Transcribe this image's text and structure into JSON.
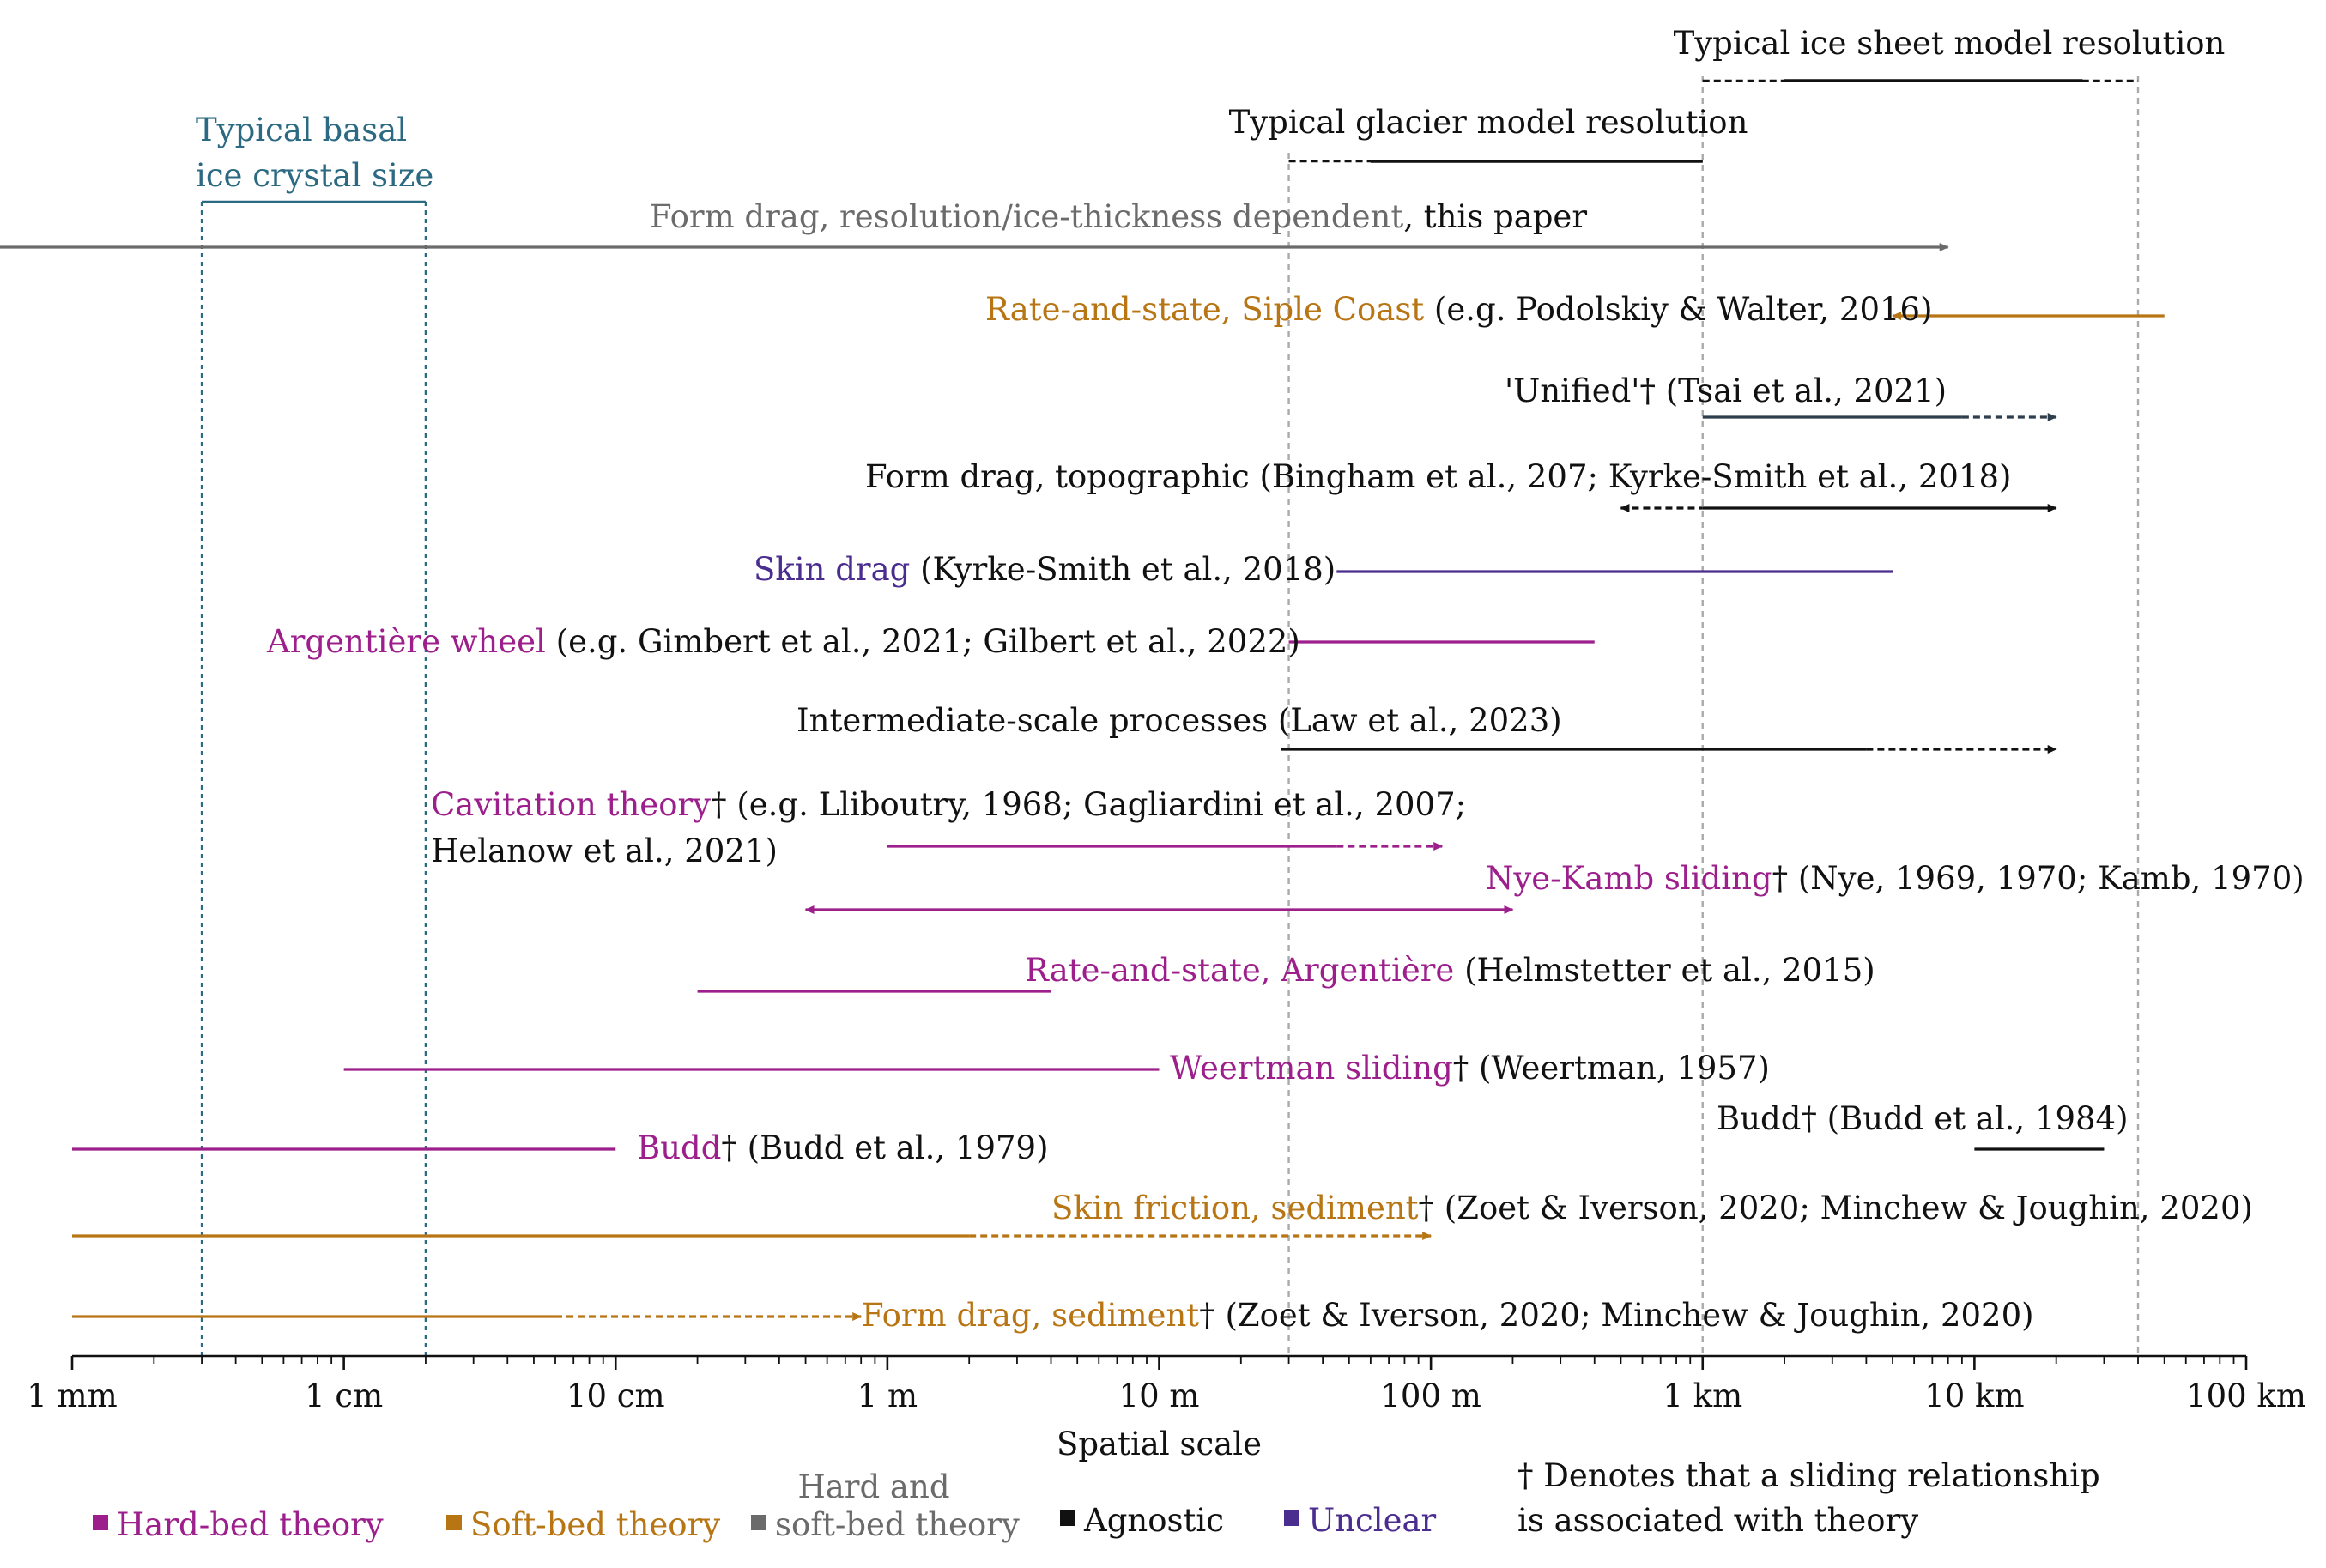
{
  "chart_data": {
    "type": "range",
    "xlabel": "Spatial scale",
    "x_scale": "log",
    "x_unit": "m",
    "xlim": [
      0.001,
      100000
    ],
    "ticks": [
      {
        "value": 0.001,
        "label": "1 mm"
      },
      {
        "value": 0.01,
        "label": "1 cm"
      },
      {
        "value": 0.1,
        "label": "10 cm"
      },
      {
        "value": 1,
        "label": "1 m"
      },
      {
        "value": 10,
        "label": "10 m"
      },
      {
        "value": 100,
        "label": "100 m"
      },
      {
        "value": 1000,
        "label": "1 km"
      },
      {
        "value": 10000,
        "label": "10 km"
      },
      {
        "value": 100000,
        "label": "100 km"
      }
    ],
    "colors": {
      "hard": "#9c1f8c",
      "soft": "#b87514",
      "both": "#6b6b6b",
      "agnostic": "#111111",
      "unclear": "#4b2d8f",
      "teal": "#2b6a82",
      "slate": "#2f3e4c",
      "grid": "#aaaaaa"
    },
    "resolution_bands": [
      {
        "label": "Typical ice sheet model resolution",
        "solid": [
          2000,
          25000
        ],
        "dashed": [
          1000,
          40000
        ]
      },
      {
        "label": "Typical glacier model resolution",
        "solid": [
          60,
          1000
        ],
        "dashed": [
          30,
          1000
        ]
      }
    ],
    "crystal_band": {
      "label_lines": [
        "Typical basal",
        "ice crystal size"
      ],
      "range": [
        0.003,
        0.02
      ]
    },
    "processes": [
      {
        "id": "form-drag-this-paper",
        "label": "Form drag, resolution/ice-thickness dependent",
        "ref": ", this paper",
        "category": "both",
        "solid": [
          0.0004,
          8000
        ],
        "dashed": null,
        "arrows": "both"
      },
      {
        "id": "rate-state-siple",
        "label": "Rate-and-state, Siple Coast",
        "ref": " (e.g. Podolskiy & Walter, 2016)",
        "category": "soft",
        "solid": [
          5000,
          50000
        ],
        "dashed": null,
        "arrows": "start"
      },
      {
        "id": "unified",
        "label": "",
        "ref": "'Unified'† (Tsai et al., 2021)",
        "category": "slate",
        "solid": [
          1000,
          9000
        ],
        "dashed": [
          9000,
          20000
        ],
        "arrows": "end"
      },
      {
        "id": "form-drag-topo",
        "label": "",
        "ref": "Form drag, topographic (Bingham et al., 207; Kyrke-Smith et al., 2018)",
        "category": "agnostic",
        "solid": [
          1000,
          20000
        ],
        "dashed": [
          500,
          1000
        ],
        "arrows": "both"
      },
      {
        "id": "skin-drag",
        "label": "Skin drag",
        "ref": " (Kyrke-Smith et al., 2018)",
        "category": "unclear",
        "solid": [
          45,
          5000
        ],
        "dashed": null,
        "arrows": "none"
      },
      {
        "id": "argentiere-wheel",
        "label": "Argentière wheel",
        "ref": " (e.g. Gimbert et al., 2021; Gilbert et al., 2022)",
        "category": "hard",
        "solid": [
          30,
          400
        ],
        "dashed": null,
        "arrows": "none"
      },
      {
        "id": "intermediate-scale",
        "label": "",
        "ref": "Intermediate-scale processes (Law et al., 2023)",
        "category": "agnostic",
        "solid": [
          28,
          4000
        ],
        "dashed": [
          4000,
          20000
        ],
        "arrows": "end"
      },
      {
        "id": "cavitation",
        "label": "Cavitation theory",
        "ref_lines": [
          "† (e.g. Lliboutry, 1968; Gagliardini et al., 2007;",
          "Helanow et al., 2021)"
        ],
        "category": "hard",
        "solid": [
          1,
          45
        ],
        "dashed": [
          45,
          110
        ],
        "arrows": "end"
      },
      {
        "id": "nye-kamb",
        "label": "Nye-Kamb sliding",
        "ref": "† (Nye, 1969, 1970; Kamb, 1970)",
        "category": "hard",
        "solid": [
          0.5,
          200
        ],
        "dashed": null,
        "arrows": "both"
      },
      {
        "id": "rate-state-argentiere",
        "label": "Rate-and-state, Argentière",
        "ref": " (Helmstetter et al., 2015)",
        "category": "hard",
        "solid": [
          0.2,
          4
        ],
        "dashed": null,
        "arrows": "none"
      },
      {
        "id": "weertman",
        "label": "Weertman sliding",
        "ref": "† (Weertman, 1957)",
        "category": "hard",
        "solid": [
          0.01,
          10
        ],
        "dashed": null,
        "arrows": "none"
      },
      {
        "id": "budd-1984",
        "label": "",
        "ref": "Budd† (Budd et al., 1984)",
        "category": "agnostic",
        "solid": [
          10000,
          30000
        ],
        "dashed": null,
        "arrows": "none"
      },
      {
        "id": "budd-1979",
        "label": "Budd",
        "ref": "† (Budd et al., 1979)",
        "category": "hard",
        "solid": [
          0.001,
          0.1
        ],
        "dashed": null,
        "arrows": "none"
      },
      {
        "id": "skin-friction-sediment",
        "label": "Skin friction, sediment",
        "ref": "† (Zoet & Iverson, 2020; Minchew & Joughin, 2020)",
        "category": "soft",
        "solid": [
          0.001,
          2
        ],
        "dashed": [
          2,
          100
        ],
        "arrows": "end"
      },
      {
        "id": "form-drag-sediment",
        "label": "Form drag, sediment",
        "ref": "† (Zoet & Iverson, 2020; Minchew & Joughin, 2020)",
        "category": "soft",
        "solid": [
          0.001,
          0.06
        ],
        "dashed": [
          0.06,
          0.8
        ],
        "arrows": "end"
      }
    ]
  },
  "legend": {
    "items": [
      {
        "label": "Hard-bed theory",
        "category": "hard"
      },
      {
        "label": "Soft-bed theory",
        "category": "soft"
      },
      {
        "label_lines": [
          "Hard and",
          "soft-bed theory"
        ],
        "category": "both"
      },
      {
        "label": "Agnostic",
        "category": "agnostic"
      },
      {
        "label": "Unclear",
        "category": "unclear"
      }
    ],
    "footnote_lines": [
      "† Denotes that a sliding relationship",
      "is associated with theory"
    ]
  }
}
